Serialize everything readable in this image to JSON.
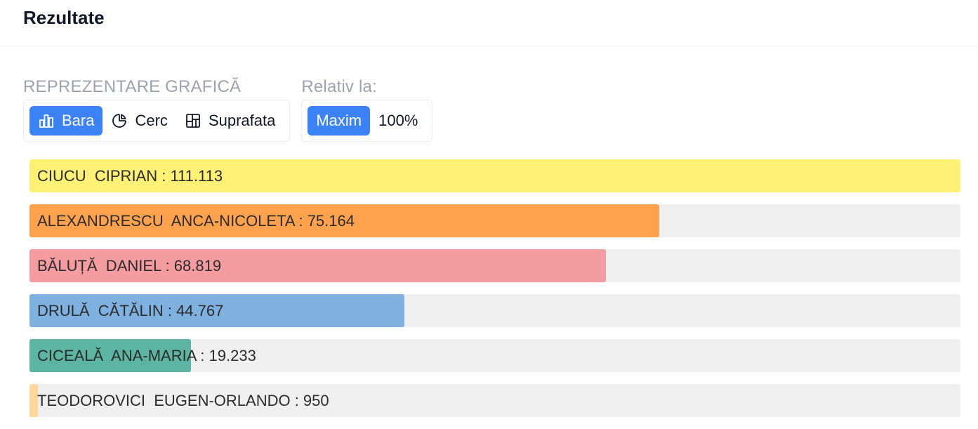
{
  "header": {
    "title": "Rezultate"
  },
  "controls": {
    "representation_label": "REPREZENTARE GRAFICĂ",
    "representation_options": [
      {
        "label": "Bara",
        "icon": "bar-chart-icon",
        "active": true
      },
      {
        "label": "Cerc",
        "icon": "pie-chart-icon",
        "active": false
      },
      {
        "label": "Suprafata",
        "icon": "layout-grid-icon",
        "active": false
      }
    ],
    "relative_label": "Relativ la:",
    "relative_options": [
      {
        "label": "Maxim",
        "active": true
      },
      {
        "label": "100%",
        "active": false
      }
    ],
    "accent_color": "#3b82f6"
  },
  "chart_data": {
    "type": "bar",
    "orientation": "horizontal",
    "relative_to": "max",
    "track_color": "#efefef",
    "series": [
      {
        "name": "CIUCU  CIPRIAN",
        "value": 111113,
        "display": "111.113",
        "color": "#fff176"
      },
      {
        "name": "ALEXANDRESCU  ANCA-NICOLETA",
        "value": 75164,
        "display": "75.164",
        "color": "#ffa24d"
      },
      {
        "name": "BĂLUȚĂ  DANIEL",
        "value": 68819,
        "display": "68.819",
        "color": "#f59ca0"
      },
      {
        "name": "DRULĂ  CĂTĂLIN",
        "value": 44767,
        "display": "44.767",
        "color": "#7eb0e0"
      },
      {
        "name": "CICEALĂ  ANA-MARIA",
        "value": 19233,
        "display": "19.233",
        "color": "#5bb5a2"
      },
      {
        "name": "TEODOROVICI  EUGEN-ORLANDO",
        "value": 950,
        "display": "950",
        "color": "#ffd79e"
      }
    ]
  }
}
